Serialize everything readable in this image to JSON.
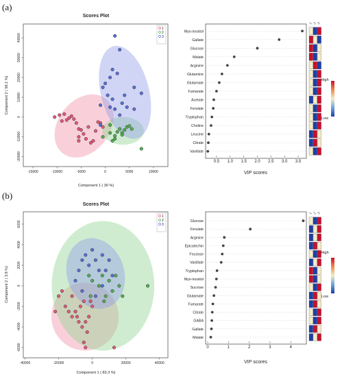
{
  "panels": [
    {
      "label": "(a)",
      "scores_plot": {
        "title": "Scores Plot",
        "xlabel": "Component 1 ( 36 %)",
        "ylabel": "Component 2 ( 56.1 %)",
        "xticks": [
          "-15000",
          "-10000",
          "-5000",
          "0",
          "5000",
          "10000"
        ],
        "yticks": [
          "-20000",
          "-10000",
          "0",
          "10000",
          "20000",
          "30000",
          "40000"
        ],
        "legend": [
          "1",
          "2",
          "3"
        ]
      },
      "vip_plot": {
        "xlabel": "VIP scores",
        "xticks": [
          "0.5",
          "1.0",
          "1.5",
          "2.0",
          "2.5",
          "3.0",
          "3.5"
        ],
        "heat_columns": [
          "1",
          "2",
          "3"
        ],
        "scale_high": "High",
        "scale_low": "Low"
      }
    },
    {
      "label": "(b)",
      "scores_plot": {
        "title": "Scores Plot",
        "xlabel": "Component 1 ( 83.3 %)",
        "ylabel": "Component 2 ( 3.8 %)",
        "xticks": [
          "-40000",
          "-20000",
          "0",
          "20000",
          "40000"
        ],
        "yticks": [
          "-6000",
          "-4000",
          "-2000",
          "0",
          "2000",
          "4000",
          "6000"
        ],
        "legend": [
          "1",
          "2",
          "3"
        ]
      },
      "vip_plot": {
        "xlabel": "VIP scores",
        "xticks": [
          "0",
          "1",
          "2",
          "3",
          "4"
        ],
        "heat_columns": [
          "1",
          "2",
          "3"
        ],
        "scale_high": "High",
        "scale_low": "Low"
      }
    }
  ],
  "colors": {
    "group1": "#e05a78",
    "group2": "#4fae50",
    "group3": "#5a6fd6",
    "ellipse1": "#f08fa8",
    "ellipse2": "#8fd28f",
    "ellipse3": "#8f9ae8",
    "heat_high": "#c8102e",
    "heat_mid": "#f3ecc8",
    "heat_low": "#1e3fa8",
    "dot": "#444444"
  },
  "chart_data": [
    {
      "type": "scatter",
      "title": "Scores Plot",
      "xlabel": "Component 1 ( 36 %)",
      "ylabel": "Component 2 ( 56.1 %)",
      "xlim": [
        -17000,
        13000
      ],
      "ylim": [
        -25000,
        47000
      ],
      "grid": false,
      "legend_position": "top-right",
      "series": [
        {
          "name": "1",
          "points": [
            [
              -10500,
              0
            ],
            [
              -9500,
              1000
            ],
            [
              -9000,
              -2000
            ],
            [
              -8500,
              1500
            ],
            [
              -8000,
              -1500
            ],
            [
              -7500,
              -500
            ],
            [
              -7000,
              500
            ],
            [
              -6500,
              -1000
            ],
            [
              -6000,
              -3000
            ],
            [
              -5500,
              -6000
            ],
            [
              -5000,
              -6500
            ],
            [
              -4500,
              -8500
            ],
            [
              -4000,
              -11000
            ],
            [
              -3000,
              -13000
            ],
            [
              -2500,
              -12000
            ],
            [
              -1000,
              -3000
            ],
            [
              -500,
              -5000
            ],
            [
              -1500,
              -2500
            ],
            [
              -2000,
              -7000
            ],
            [
              -3500,
              -5000
            ],
            [
              -5500,
              -10000
            ],
            [
              -5500,
              -12000
            ]
          ]
        },
        {
          "name": "2",
          "points": [
            [
              -500,
              -10000
            ],
            [
              1000,
              -8000
            ],
            [
              2000,
              -9500
            ],
            [
              2500,
              -7500
            ],
            [
              3000,
              -6000
            ],
            [
              3500,
              -8000
            ],
            [
              4000,
              -6500
            ],
            [
              4500,
              -5000
            ],
            [
              3500,
              -9000
            ],
            [
              2000,
              -11000
            ],
            [
              1500,
              -12000
            ],
            [
              5500,
              -6000
            ],
            [
              7500,
              -16000
            ],
            [
              5000,
              -4500
            ],
            [
              1000,
              -4000
            ]
          ]
        },
        {
          "name": "3",
          "points": [
            [
              2000,
              41000
            ],
            [
              3000,
              34000
            ],
            [
              1500,
              24000
            ],
            [
              2500,
              22000
            ],
            [
              1000,
              20000
            ],
            [
              0,
              17000
            ],
            [
              -500,
              15000
            ],
            [
              500,
              11000
            ],
            [
              1500,
              9000
            ],
            [
              3500,
              7000
            ],
            [
              4500,
              5000
            ],
            [
              6000,
              4000
            ],
            [
              2000,
              4000
            ],
            [
              6000,
              15000
            ],
            [
              7500,
              12000
            ],
            [
              1000,
              5000
            ],
            [
              -1000,
              6000
            ],
            [
              3000,
              1000
            ],
            [
              -1000,
              -4000
            ],
            [
              4000,
              11000
            ]
          ]
        }
      ],
      "ellipses": [
        {
          "group": "1",
          "cx": -4400,
          "cy": -4500,
          "rx": 7200,
          "ry": 13000,
          "angle": -52
        },
        {
          "group": "2",
          "cx": 3700,
          "cy": -7000,
          "rx": 4300,
          "ry": 7000,
          "angle": 0
        },
        {
          "group": "3",
          "cx": 4100,
          "cy": 12500,
          "rx": 5000,
          "ry": 24000,
          "angle": -14
        }
      ]
    },
    {
      "type": "scatter",
      "subtype": "vip",
      "xlabel": "VIP scores",
      "xlim": [
        0.1,
        3.8
      ],
      "categories": [
        "Myo-inositol",
        "Gallate",
        "Glucose",
        "Malate",
        "Arginine",
        "Glutamine",
        "Glutamate",
        "Fumarate",
        "Acetate",
        "Ferulate",
        "Tryptophan",
        "Choline",
        "Leucine",
        "Citrate",
        "Vanillate"
      ],
      "values": [
        3.65,
        2.8,
        2.0,
        1.15,
        0.9,
        0.7,
        0.6,
        0.5,
        0.4,
        0.38,
        0.33,
        0.3,
        0.22,
        0.2,
        0.18
      ],
      "heatmap_columns": [
        "1",
        "2",
        "3"
      ],
      "heatmap": [
        [
          "mid",
          "low",
          "high"
        ],
        [
          "high",
          "mid",
          "low"
        ],
        [
          "high",
          "low",
          "mid"
        ],
        [
          "high",
          "low",
          "mid"
        ],
        [
          "mid",
          "high",
          "low"
        ],
        [
          "mid",
          "low",
          "high"
        ],
        [
          "mid",
          "low",
          "high"
        ],
        [
          "mid",
          "low",
          "high"
        ],
        [
          "low",
          "mid",
          "high"
        ],
        [
          "mid",
          "low",
          "high"
        ],
        [
          "mid",
          "low",
          "high"
        ],
        [
          "mid",
          "low",
          "high"
        ],
        [
          "low",
          "high",
          "mid"
        ],
        [
          "low",
          "high",
          "mid"
        ],
        [
          "mid",
          "low",
          "high"
        ]
      ]
    },
    {
      "type": "scatter",
      "title": "Scores Plot",
      "xlabel": "Component 1 ( 83.3 %)",
      "ylabel": "Component 2 ( 3.8 %)",
      "xlim": [
        -41000,
        45000
      ],
      "ylim": [
        -7000,
        7200
      ],
      "grid": false,
      "legend_position": "top-right",
      "series": [
        {
          "name": "1",
          "points": [
            [
              -22000,
              -2500
            ],
            [
              -20000,
              -1000
            ],
            [
              -18000,
              -500
            ],
            [
              -16000,
              -2000
            ],
            [
              -14000,
              -2500
            ],
            [
              -12000,
              -1000
            ],
            [
              -10000,
              -2500
            ],
            [
              -9000,
              -3000
            ],
            [
              -8000,
              -3500
            ],
            [
              -7000,
              -2000
            ],
            [
              -6000,
              -4000
            ],
            [
              -5000,
              -1500
            ],
            [
              -4000,
              -3500
            ],
            [
              -3000,
              -4500
            ],
            [
              -2000,
              -3000
            ],
            [
              -1000,
              -1500
            ],
            [
              0,
              -2000
            ],
            [
              -12000,
              -3000
            ],
            [
              -5000,
              -5500
            ],
            [
              -4000,
              -6000
            ],
            [
              13000,
              -6000
            ]
          ]
        },
        {
          "name": "2",
          "points": [
            [
              -2000,
              1000
            ],
            [
              0,
              500
            ],
            [
              4000,
              0
            ],
            [
              6000,
              1000
            ],
            [
              8000,
              -1000
            ],
            [
              10000,
              500
            ],
            [
              12000,
              -500
            ],
            [
              14000,
              1000
            ],
            [
              16000,
              0
            ],
            [
              18000,
              -1000
            ],
            [
              7000,
              -1500
            ],
            [
              -1000,
              -1000
            ],
            [
              33000,
              0
            ]
          ]
        },
        {
          "name": "3",
          "points": [
            [
              -8000,
              1500
            ],
            [
              -6000,
              2500
            ],
            [
              -4000,
              3000
            ],
            [
              -2000,
              2000
            ],
            [
              0,
              3500
            ],
            [
              2000,
              2500
            ],
            [
              4000,
              1500
            ],
            [
              6000,
              3000
            ],
            [
              8000,
              1500
            ],
            [
              10000,
              2500
            ],
            [
              12000,
              1000
            ],
            [
              -10000,
              500
            ],
            [
              -6000,
              -500
            ],
            [
              2000,
              -1000
            ],
            [
              6000,
              0
            ]
          ]
        }
      ],
      "ellipses": [
        {
          "group": "1",
          "cx": -4300,
          "cy": -3000,
          "rx": 20000,
          "ry": 3300,
          "angle": -10
        },
        {
          "group": "2",
          "cx": 6400,
          "cy": 0,
          "rx": 30500,
          "ry": 6300,
          "angle": 0
        },
        {
          "group": "3",
          "cx": 2000,
          "cy": 1200,
          "rx": 17000,
          "ry": 3500,
          "angle": -18
        }
      ]
    },
    {
      "type": "scatter",
      "subtype": "vip",
      "xlabel": "VIP scores",
      "xlim": [
        -0.1,
        4.75
      ],
      "categories": [
        "Glucose",
        "Ferulate",
        "Arginine",
        "Epicatechin",
        "Fructose",
        "Vanillate",
        "Tryptophan",
        "Myo-inositol",
        "Sucrose",
        "Glutamate",
        "Fumarate",
        "Citrate",
        "GABA",
        "Gallate",
        "Malate"
      ],
      "values": [
        4.6,
        2.05,
        0.8,
        0.75,
        0.7,
        0.65,
        0.45,
        0.42,
        0.38,
        0.3,
        0.25,
        0.22,
        0.2,
        0.18,
        0.15
      ],
      "heatmap_columns": [
        "1",
        "2",
        "3"
      ],
      "heatmap": [
        [
          "mid",
          "low",
          "high"
        ],
        [
          "low",
          "mid",
          "high"
        ],
        [
          "low",
          "mid",
          "high"
        ],
        [
          "low",
          "high",
          "mid"
        ],
        [
          "mid",
          "low",
          "high"
        ],
        [
          "low",
          "mid",
          "high"
        ],
        [
          "high",
          "low",
          "mid"
        ],
        [
          "high",
          "low",
          "mid"
        ],
        [
          "mid",
          "low",
          "high"
        ],
        [
          "low",
          "high",
          "mid"
        ],
        [
          "low",
          "high",
          "mid"
        ],
        [
          "mid",
          "low",
          "high"
        ],
        [
          "mid",
          "low",
          "high"
        ],
        [
          "low",
          "high",
          "mid"
        ],
        [
          "low",
          "mid",
          "high"
        ]
      ]
    }
  ]
}
